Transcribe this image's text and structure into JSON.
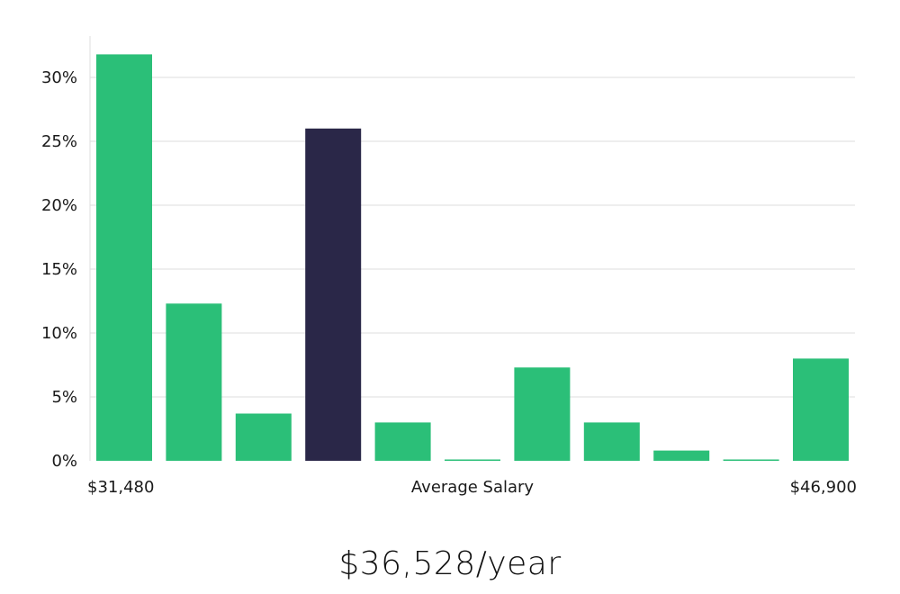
{
  "chart_data": {
    "type": "bar",
    "title": "",
    "xlabel": "Average Salary",
    "ylabel": "",
    "x_range_labels": {
      "start": "$31,480",
      "end": "$46,900"
    },
    "values": [
      31.8,
      12.3,
      3.7,
      26.0,
      3.0,
      0.1,
      7.3,
      3.0,
      0.8,
      0.1,
      8.0
    ],
    "highlight_index": 3,
    "ylim": [
      0,
      33
    ],
    "yticks": [
      0,
      5,
      10,
      15,
      20,
      25,
      30
    ],
    "ytick_labels": [
      "0%",
      "5%",
      "10%",
      "15%",
      "20%",
      "25%",
      "30%"
    ],
    "grid": true,
    "colors": {
      "bar": "#2bbf78",
      "highlight": "#2a2748",
      "grid": "#dedede"
    }
  },
  "salary": "$36,528/year"
}
